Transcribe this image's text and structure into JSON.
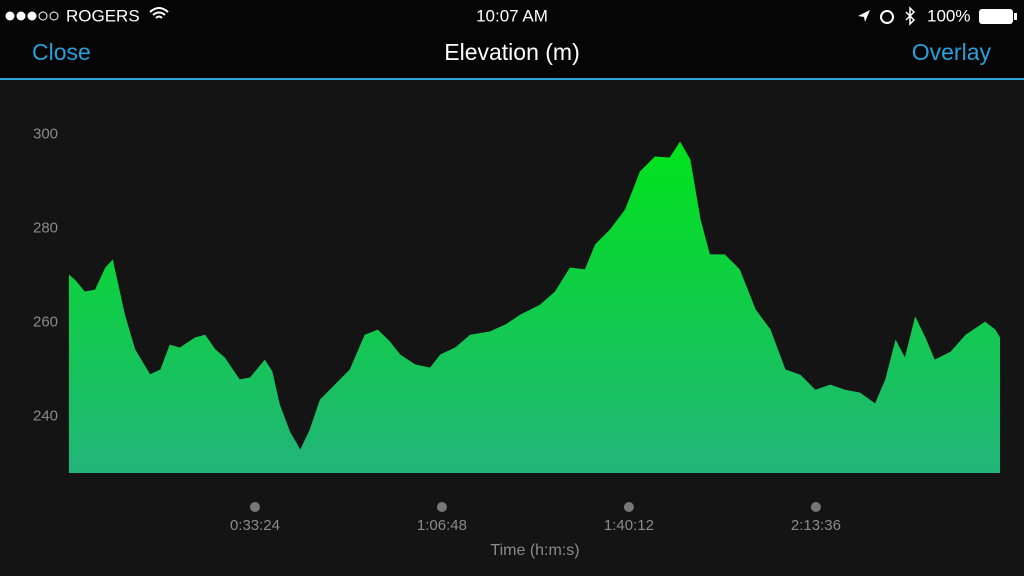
{
  "status_bar": {
    "carrier": "ROGERS",
    "time": "10:07 AM",
    "battery": "100%"
  },
  "nav": {
    "left": "Close",
    "title": "Elevation (m)",
    "right": "Overlay"
  },
  "chart_data": {
    "type": "area",
    "x_label": "Time (h:m:s)",
    "color_top": "#00e31a",
    "color_bottom": "#22b57a",
    "xlim": [
      0,
      10000
    ],
    "xticks": [
      {
        "value": 2004,
        "label": "0:33:24"
      },
      {
        "value": 4008,
        "label": "1:06:48"
      },
      {
        "value": 6012,
        "label": "1:40:12"
      },
      {
        "value": 8016,
        "label": "2:13:36"
      }
    ],
    "ylim": [
      228,
      302
    ],
    "yticks": [
      240,
      260,
      280,
      300
    ],
    "x": [
      10,
      80,
      180,
      290,
      400,
      480,
      610,
      720,
      880,
      990,
      1090,
      1200,
      1360,
      1470,
      1580,
      1680,
      1840,
      1950,
      2110,
      2190,
      2270,
      2380,
      2490,
      2590,
      2700,
      2860,
      3020,
      3180,
      3320,
      3450,
      3560,
      3720,
      3880,
      3990,
      4150,
      4310,
      4520,
      4690,
      4850,
      5060,
      5220,
      5380,
      5540,
      5650,
      5810,
      5970,
      6130,
      6290,
      6450,
      6560,
      6670,
      6780,
      6880,
      7040,
      7200,
      7370,
      7530,
      7690,
      7850,
      8010,
      8170,
      8330,
      8490,
      8650,
      8760,
      8870,
      8970,
      9080,
      9190,
      9290,
      9460,
      9620,
      9830,
      9940,
      9990
    ],
    "values": [
      270.2,
      269,
      266.6,
      267,
      271.7,
      273.4,
      261.7,
      254.3,
      249,
      250,
      255.3,
      254.7,
      256.8,
      257.4,
      254.3,
      252.6,
      247.9,
      248.3,
      252.1,
      249.6,
      242.6,
      236.8,
      233,
      237.2,
      243.6,
      246.8,
      250,
      257.4,
      258.5,
      256,
      253.2,
      251.1,
      250.4,
      253.2,
      254.7,
      257.4,
      258.1,
      259.6,
      261.7,
      263.8,
      266.6,
      271.7,
      271.3,
      276.6,
      279.8,
      284,
      292.1,
      295.3,
      295.1,
      298.5,
      294.7,
      281.9,
      274.5,
      274.5,
      271.3,
      262.8,
      258.5,
      250,
      248.9,
      245.7,
      246.8,
      245.7,
      245.1,
      242.8,
      247.9,
      256.4,
      252.6,
      261.3,
      256.8,
      252.1,
      253.8,
      257.4,
      260.2,
      258.5,
      256.8
    ]
  }
}
